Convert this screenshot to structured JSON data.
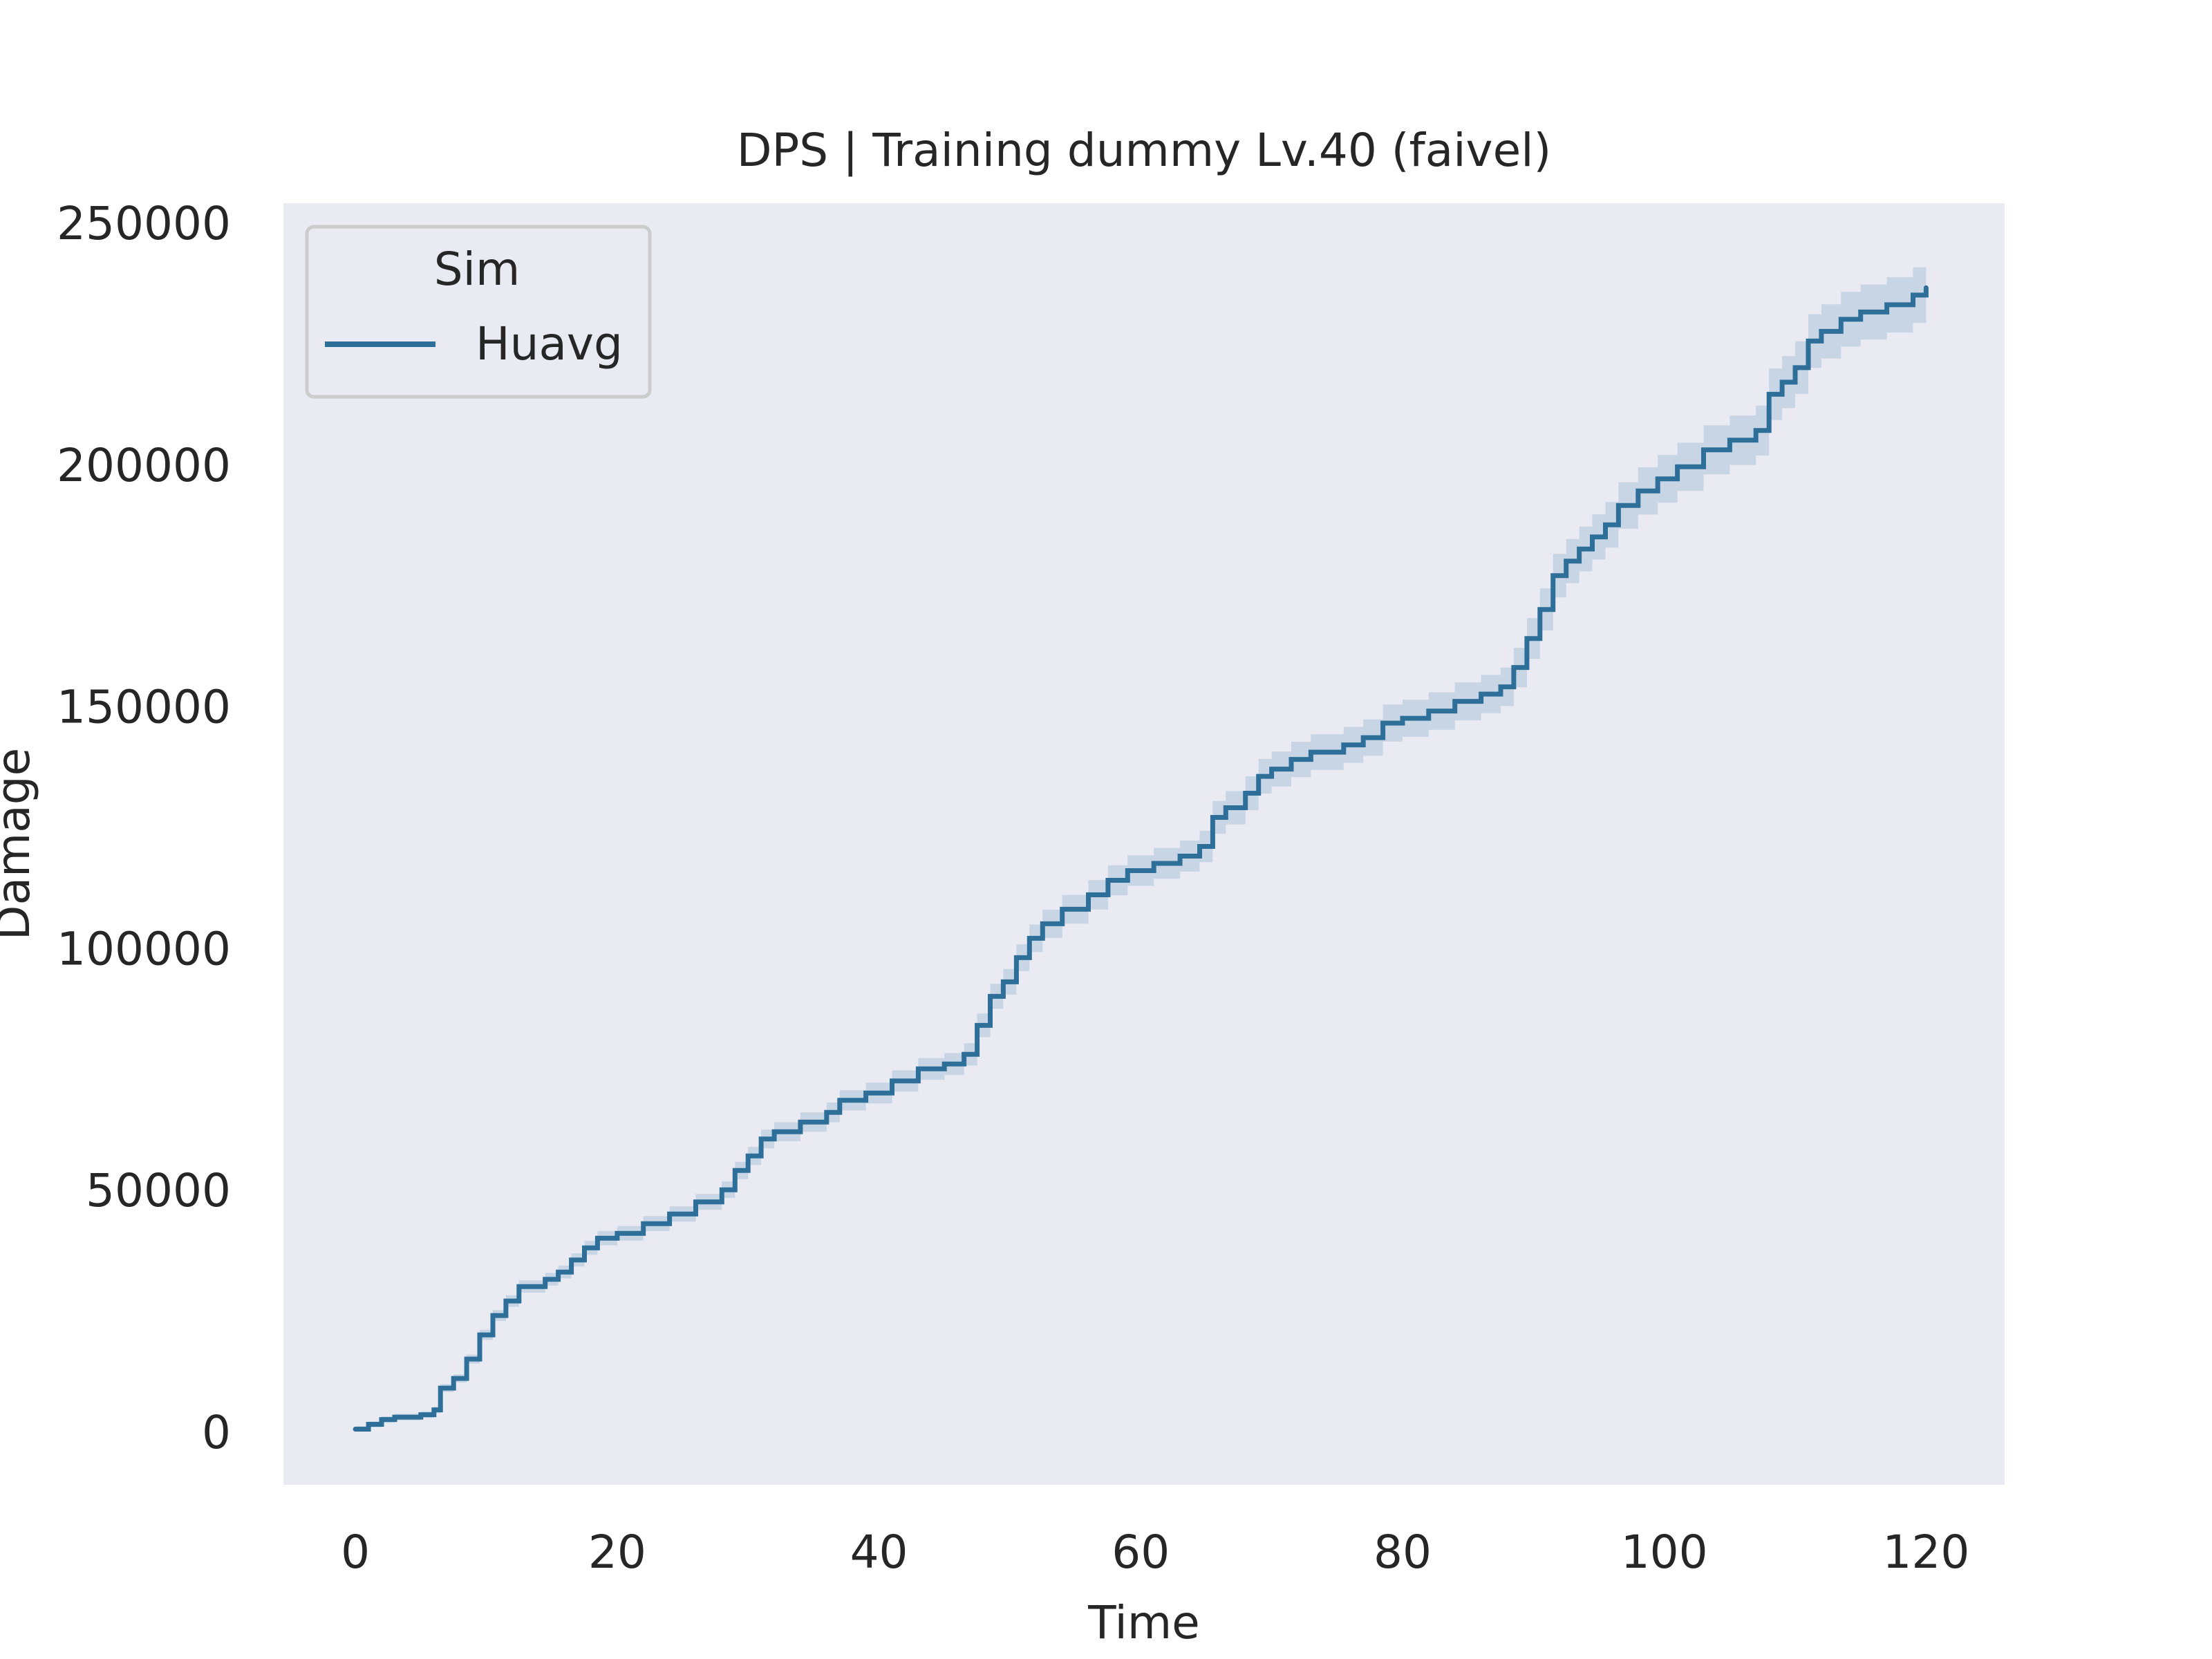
{
  "chart_data": {
    "type": "line",
    "title": "DPS | Training dummy Lv.40 (faivel)",
    "xlabel": "Time",
    "ylabel": "Damage",
    "xlim": [
      -5.5,
      126
    ],
    "ylim": [
      -11000,
      254000
    ],
    "xticks": [
      0,
      20,
      40,
      60,
      80,
      100,
      120
    ],
    "yticks": [
      0,
      50000,
      100000,
      150000,
      200000,
      250000
    ],
    "xtick_labels": [
      "0",
      "20",
      "40",
      "60",
      "80",
      "100",
      "120"
    ],
    "ytick_labels": [
      "0",
      "50000",
      "100000",
      "150000",
      "200000",
      "250000"
    ],
    "grid": false,
    "legend": {
      "title": "Sim",
      "placement": "top-left",
      "entries": [
        "Huavg"
      ]
    },
    "colors": {
      "background": "#eaeaf2",
      "line": "#2e6f99",
      "band": "#a9c3d8"
    },
    "series": [
      {
        "name": "Huavg",
        "style": "step",
        "x": [
          0,
          1,
          2,
          3,
          4,
          5,
          6,
          6.5,
          7.5,
          8.5,
          9.5,
          10.5,
          11.5,
          12.5,
          13.5,
          14.5,
          15.5,
          16.5,
          17.5,
          18.5,
          20,
          22,
          24,
          26,
          28,
          29,
          30,
          31,
          32,
          34,
          36,
          37,
          39,
          41,
          43,
          45,
          46.5,
          47.5,
          48.5,
          49.5,
          50.5,
          51.5,
          52.5,
          54,
          56,
          57.5,
          59,
          61,
          63,
          64.5,
          65.5,
          66.5,
          68,
          69,
          70,
          71.5,
          73,
          75.5,
          77,
          78.5,
          80,
          82,
          84,
          86,
          87.5,
          88.5,
          89.5,
          90.5,
          91.5,
          92.5,
          93.5,
          94.5,
          95.5,
          96.5,
          98,
          99.5,
          101,
          103,
          105,
          107,
          108,
          109,
          110,
          111,
          112,
          113.5,
          115,
          117,
          119,
          120
        ],
        "y": [
          500,
          1500,
          2500,
          3000,
          3000,
          3500,
          4500,
          9000,
          11000,
          15000,
          20000,
          24000,
          27000,
          30000,
          30000,
          31500,
          33000,
          35500,
          38000,
          40000,
          41000,
          43000,
          45000,
          47500,
          50000,
          54000,
          57000,
          60500,
          62000,
          64000,
          66000,
          68500,
          70000,
          72500,
          75000,
          76000,
          78000,
          84000,
          90000,
          93000,
          98000,
          102000,
          105000,
          108000,
          111000,
          114000,
          116000,
          117500,
          119000,
          121000,
          127000,
          129000,
          132000,
          135500,
          137000,
          139000,
          140500,
          142000,
          143500,
          146500,
          147500,
          149000,
          151000,
          152500,
          154000,
          158000,
          164000,
          170000,
          177000,
          180000,
          182500,
          185000,
          187500,
          191500,
          194500,
          197000,
          199500,
          203000,
          205000,
          207000,
          214500,
          217000,
          220000,
          225500,
          227500,
          230000,
          231500,
          233000,
          235000,
          236500
        ]
      }
    ]
  }
}
